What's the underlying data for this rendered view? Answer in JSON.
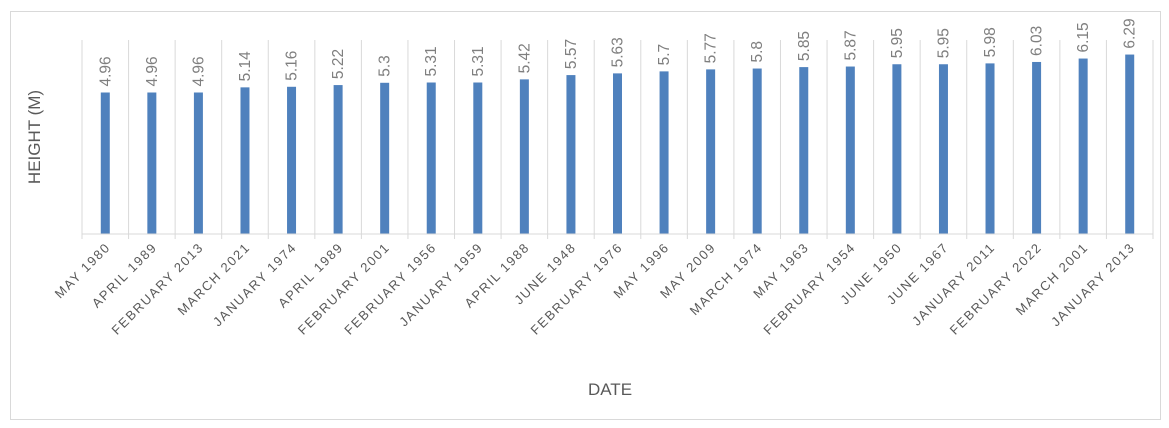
{
  "chart_data": {
    "type": "bar",
    "xlabel": "DATE",
    "ylabel": "HEIGHT (M)",
    "ylim": [
      0,
      6.8
    ],
    "grid": "vertical category gridlines",
    "legend": "none",
    "bar_color": "#4f81bd",
    "categories": [
      "MAY 1980",
      "APRIL 1989",
      "FEBRUARY 2013",
      "MARCH 2021",
      "JANUARY 1974",
      "APRIL 1989",
      "FEBRUARY 2001",
      "FEBRUARY 1956",
      "JANUARY 1959",
      "APRIL 1988",
      "JUNE 1948",
      "FEBRUARY 1976",
      "MAY 1996",
      "MAY 2009",
      "MARCH 1974",
      "MAY 1963",
      "FEBRUARY 1954",
      "JUNE 1950",
      "JUNE 1967",
      "JANUARY 2011",
      "FEBRUARY 2022",
      "MARCH 2001",
      "JANUARY 2013"
    ],
    "values": [
      4.96,
      4.96,
      4.96,
      5.14,
      5.16,
      5.22,
      5.3,
      5.31,
      5.31,
      5.42,
      5.57,
      5.63,
      5.7,
      5.77,
      5.8,
      5.85,
      5.87,
      5.95,
      5.95,
      5.98,
      6.03,
      6.15,
      6.29
    ],
    "data_labels": [
      "4.96",
      "4.96",
      "4.96",
      "5.14",
      "5.16",
      "5.22",
      "5.3",
      "5.31",
      "5.31",
      "5.42",
      "5.57",
      "5.63",
      "5.7",
      "5.77",
      "5.8",
      "5.85",
      "5.87",
      "5.95",
      "5.95",
      "5.98",
      "6.03",
      "6.15",
      "6.29"
    ]
  }
}
